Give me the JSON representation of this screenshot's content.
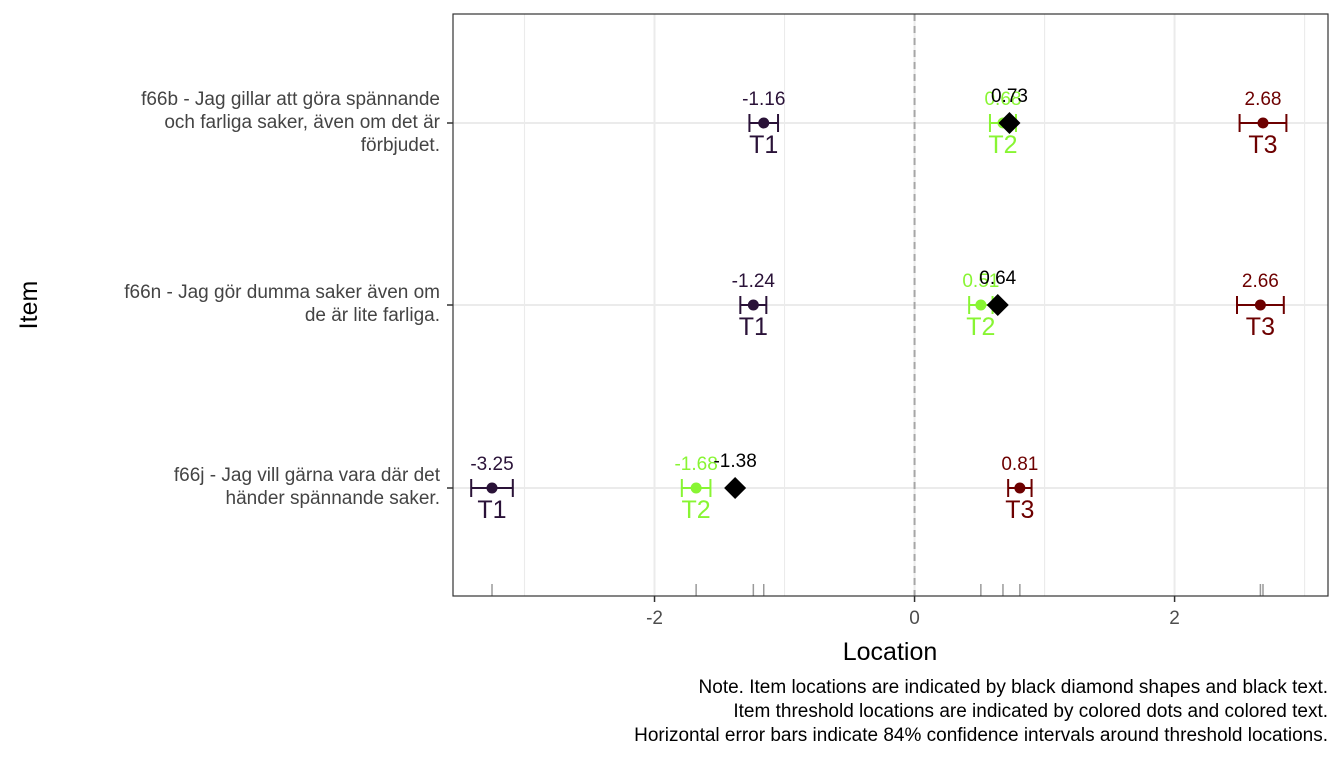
{
  "chart_data": {
    "type": "scatter",
    "title": "",
    "xlabel": "Location",
    "ylabel": "Item",
    "xlim": [
      -3.55,
      3.18
    ],
    "x_ticks": [
      -2,
      0,
      2
    ],
    "x_tick_labels": [
      "-2",
      "0",
      "2"
    ],
    "items": [
      {
        "label_lines": [
          "f66b - Jag gillar att göra spännande",
          "och farliga saker, även om det är",
          "förbjudet."
        ],
        "item_location": 0.73,
        "item_label": "0.73",
        "thresholds": [
          {
            "name": "T1",
            "value": -1.16,
            "label": "-1.16",
            "ci": [
              -1.27,
              -1.05
            ]
          },
          {
            "name": "T2",
            "value": 0.68,
            "label": "0.68",
            "ci": [
              0.58,
              0.78
            ]
          },
          {
            "name": "T3",
            "value": 2.68,
            "label": "2.68",
            "ci": [
              2.5,
              2.86
            ]
          }
        ]
      },
      {
        "label_lines": [
          "f66n - Jag gör dumma saker även om",
          "de är lite farliga."
        ],
        "item_location": 0.64,
        "item_label": "0.64",
        "thresholds": [
          {
            "name": "T1",
            "value": -1.24,
            "label": "-1.24",
            "ci": [
              -1.34,
              -1.14
            ]
          },
          {
            "name": "T2",
            "value": 0.51,
            "label": "0.51",
            "ci": [
              0.42,
              0.6
            ]
          },
          {
            "name": "T3",
            "value": 2.66,
            "label": "2.66",
            "ci": [
              2.48,
              2.84
            ]
          }
        ]
      },
      {
        "label_lines": [
          "f66j - Jag vill gärna vara där det",
          "händer spännande saker."
        ],
        "item_location": -1.38,
        "item_label": "-1.38",
        "thresholds": [
          {
            "name": "T1",
            "value": -3.25,
            "label": "-3.25",
            "ci": [
              -3.41,
              -3.09
            ]
          },
          {
            "name": "T2",
            "value": -1.68,
            "label": "-1.68",
            "ci": [
              -1.79,
              -1.57
            ]
          },
          {
            "name": "T3",
            "value": 0.81,
            "label": "0.81",
            "ci": [
              0.72,
              0.9
            ]
          }
        ]
      }
    ],
    "threshold_colors": {
      "T1": "#2a1238",
      "T2": "#88f533",
      "T3": "#6d0000"
    },
    "item_marker_color": "#000000",
    "reference_line": 0,
    "rug_values": [
      -3.25,
      -1.68,
      -1.24,
      -1.16,
      0.51,
      0.68,
      0.81,
      2.66,
      2.68
    ],
    "legend": "none"
  },
  "note": {
    "lines": [
      "Note. Item locations are indicated by black diamond shapes and black text.",
      "Item threshold locations are indicated by colored dots and colored text.",
      "Horizontal error bars indicate 84% confidence intervals around threshold locations."
    ]
  }
}
